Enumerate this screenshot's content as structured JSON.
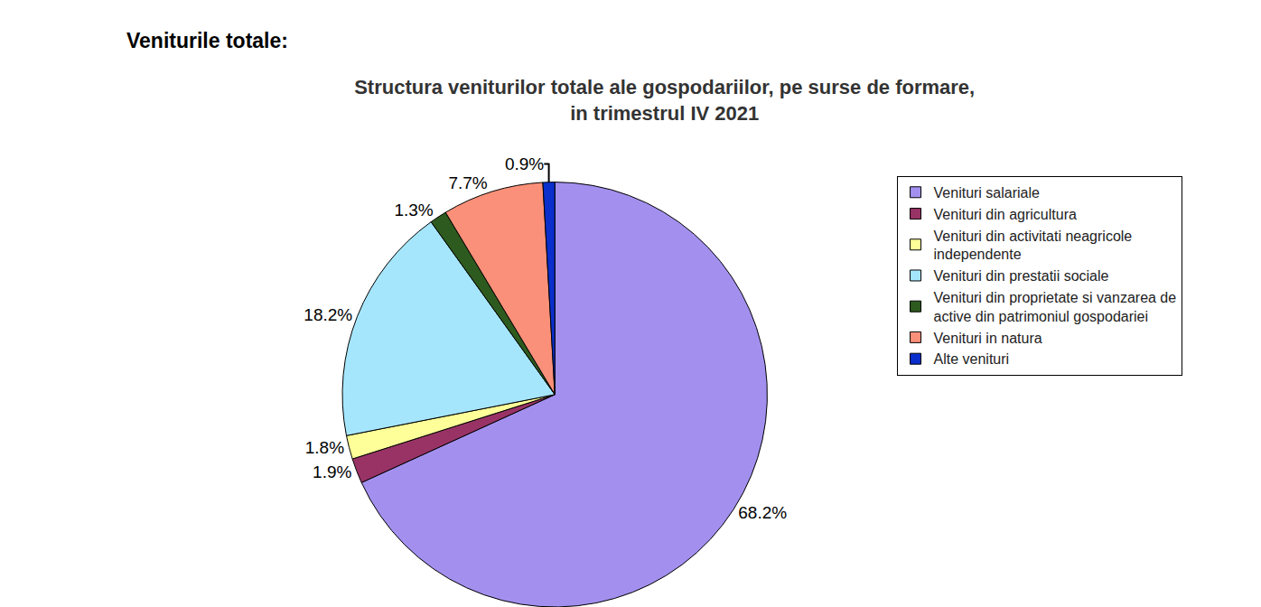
{
  "heading": "Veniturile totale:",
  "chart_data": {
    "type": "pie",
    "title": "Structura veniturilor totale ale gospodariilor, pe surse de formare,\nin trimestrul IV 2021",
    "categories": [
      "Venituri salariale",
      "Venituri din agricultura",
      "Venituri din activitati neagricole independente",
      "Venituri din prestatii sociale",
      "Venituri din proprietate si vanzarea de active din patrimoniul gospodariei",
      "Venituri in natura",
      "Alte venituri"
    ],
    "values": [
      68.2,
      1.9,
      1.8,
      18.2,
      1.3,
      7.7,
      0.9
    ],
    "value_labels": [
      "68.2%",
      "1.9%",
      "1.8%",
      "18.2%",
      "1.3%",
      "7.7%",
      "0.9%"
    ],
    "colors": [
      "#a390ee",
      "#993366",
      "#ffff99",
      "#a6e6fd",
      "#2d5a1e",
      "#fa9079",
      "#0a2fcc"
    ],
    "data_labels": true,
    "legend": "right"
  }
}
